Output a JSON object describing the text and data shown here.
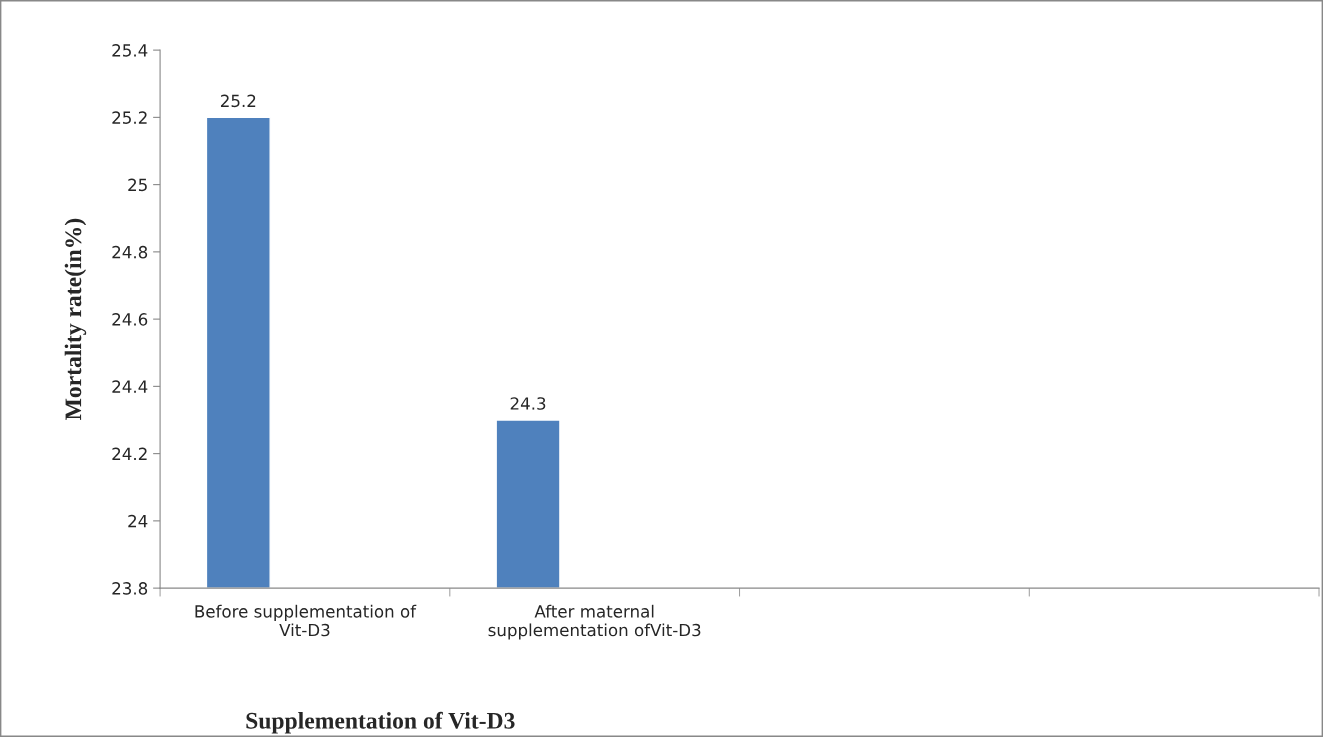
{
  "chart_data": {
    "type": "bar",
    "xlabel": "Supplementation of Vit-D3",
    "ylabel": "Mortality rate(in%)",
    "categories": [
      "Before supplementation of\nVit-D3",
      "After maternal\nsupplementation ofVit-D3",
      null,
      null
    ],
    "values": [
      25.2,
      24.3,
      null,
      null
    ],
    "color": "#4f81bd",
    "ylim": [
      23.8,
      25.4
    ],
    "yticks": [
      23.8,
      24,
      24.2,
      24.4,
      24.6,
      24.8,
      25,
      25.2,
      25.4
    ],
    "data_labels": true,
    "grid": false,
    "legend": false
  }
}
